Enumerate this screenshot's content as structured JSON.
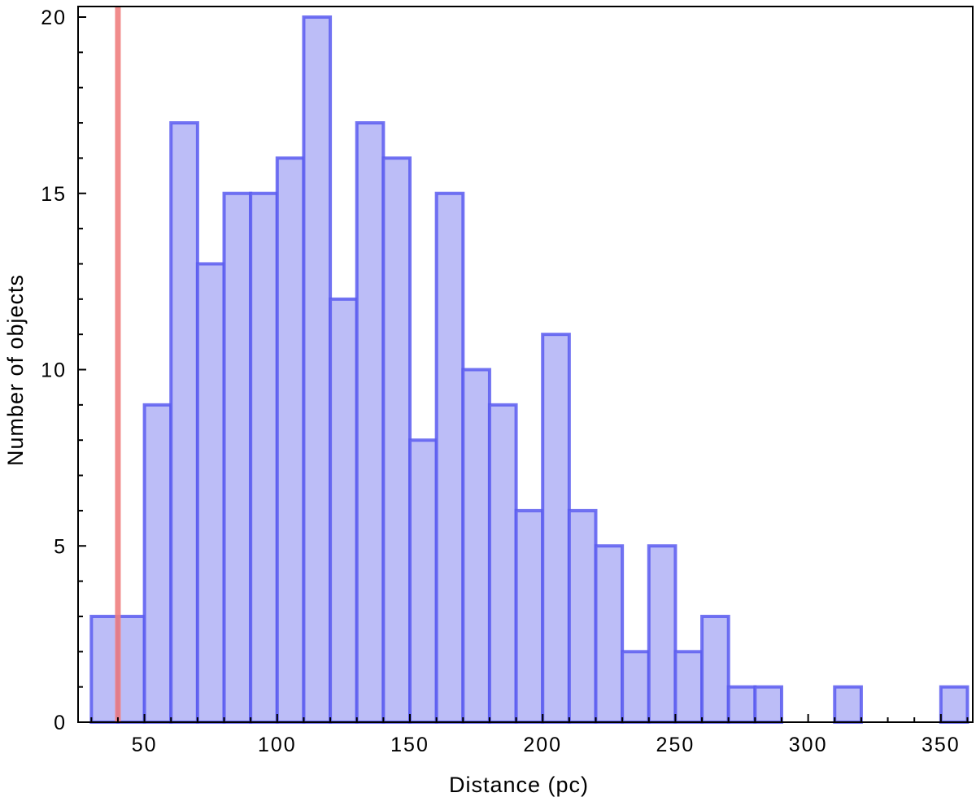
{
  "chart_data": {
    "type": "bar",
    "title": "",
    "xlabel": "Distance (pc)",
    "ylabel": "Number of objects",
    "xlim": [
      25,
      362
    ],
    "ylim": [
      0,
      20.3
    ],
    "bin_width": 10,
    "bins": [
      {
        "x0": 30,
        "count": 3
      },
      {
        "x0": 40,
        "count": 3
      },
      {
        "x0": 50,
        "count": 9
      },
      {
        "x0": 60,
        "count": 17
      },
      {
        "x0": 70,
        "count": 13
      },
      {
        "x0": 80,
        "count": 15
      },
      {
        "x0": 90,
        "count": 15
      },
      {
        "x0": 100,
        "count": 16
      },
      {
        "x0": 110,
        "count": 20
      },
      {
        "x0": 120,
        "count": 12
      },
      {
        "x0": 130,
        "count": 17
      },
      {
        "x0": 140,
        "count": 16
      },
      {
        "x0": 150,
        "count": 8
      },
      {
        "x0": 160,
        "count": 15
      },
      {
        "x0": 170,
        "count": 10
      },
      {
        "x0": 180,
        "count": 9
      },
      {
        "x0": 190,
        "count": 6
      },
      {
        "x0": 200,
        "count": 11
      },
      {
        "x0": 210,
        "count": 6
      },
      {
        "x0": 220,
        "count": 5
      },
      {
        "x0": 230,
        "count": 2
      },
      {
        "x0": 240,
        "count": 5
      },
      {
        "x0": 250,
        "count": 2
      },
      {
        "x0": 260,
        "count": 3
      },
      {
        "x0": 270,
        "count": 1
      },
      {
        "x0": 280,
        "count": 1
      },
      {
        "x0": 310,
        "count": 1
      },
      {
        "x0": 350,
        "count": 1
      }
    ],
    "x_ticks": [
      50,
      100,
      150,
      200,
      250,
      300,
      350
    ],
    "x_tick_labels": [
      "50",
      "100",
      "150",
      "200",
      "250",
      "300",
      "350"
    ],
    "y_ticks": [
      0,
      5,
      10,
      15,
      20
    ],
    "y_tick_labels": [
      "0",
      "5",
      "10",
      "15",
      "20"
    ],
    "vertical_line": {
      "x": 40,
      "color": "#f08080"
    },
    "bar_fill": "#bcbdf7",
    "bar_edge": "#5b5cf0",
    "grid": false
  }
}
